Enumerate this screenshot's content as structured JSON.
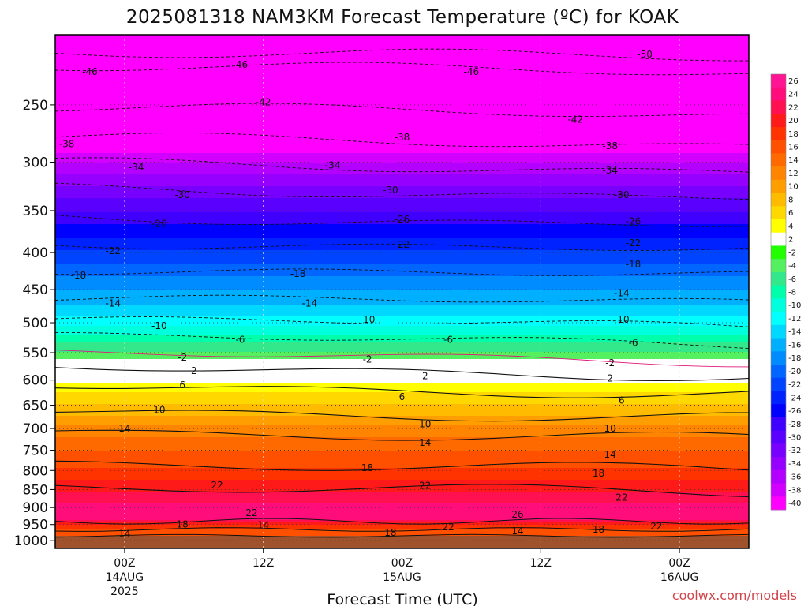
{
  "chart_data": {
    "type": "heatmap",
    "title": "2025081318 NAM3KM Forecast Temperature (ºC) for KOAK",
    "xlabel": "Forecast Time (UTC)",
    "ylabel": "",
    "credit": "coolwx.com/models",
    "x_ticks": [
      {
        "hour": 6,
        "line1": "00Z",
        "line2": "14AUG",
        "line3": "2025"
      },
      {
        "hour": 18,
        "line1": "12Z",
        "line2": "",
        "line3": ""
      },
      {
        "hour": 30,
        "line1": "00Z",
        "line2": "15AUG",
        "line3": ""
      },
      {
        "hour": 42,
        "line1": "12Z",
        "line2": "",
        "line3": ""
      },
      {
        "hour": 54,
        "line1": "00Z",
        "line2": "16AUG",
        "line3": ""
      }
    ],
    "xlim": [
      0,
      60
    ],
    "ylim": [
      1025,
      200
    ],
    "y_scale": "log",
    "y_ticks": [
      250,
      300,
      350,
      400,
      450,
      500,
      550,
      600,
      650,
      700,
      750,
      800,
      850,
      900,
      950,
      1000
    ],
    "colorbar_labels": [
      "26",
      "24",
      "22",
      "20",
      "18",
      "16",
      "14",
      "12",
      "10",
      "8",
      "6",
      "4",
      "2",
      "-2",
      "-4",
      "-6",
      "-8",
      "-10",
      "-12",
      "-14",
      "-16",
      "-18",
      "-20",
      "-22",
      "-24",
      "-26",
      "-28",
      "-30",
      "-32",
      "-34",
      "-36",
      "-38",
      "-40"
    ],
    "colorbar_colors": [
      "#ff1493",
      "#ff0d7a",
      "#ff1050",
      "#ff1a1a",
      "#ff3300",
      "#ff5000",
      "#ff6a00",
      "#ff8400",
      "#ff9e00",
      "#ffbb00",
      "#ffd800",
      "#ffff00",
      "#ffffff",
      "#22ff00",
      "#55f060",
      "#33e88a",
      "#00ffaa",
      "#00ffdd",
      "#00ffff",
      "#00d8ff",
      "#00b0ff",
      "#008cff",
      "#0066ff",
      "#0044ff",
      "#0022ff",
      "#0000ff",
      "#4000ff",
      "#5a00ff",
      "#7800ff",
      "#9600ff",
      "#b400ff",
      "#d200ff",
      "#ff00ff"
    ],
    "ground_color": "#a0522d",
    "contour_labels": [
      {
        "v": "-50",
        "x": 51,
        "p": 213
      },
      {
        "v": "-46",
        "x": 3,
        "p": 225
      },
      {
        "v": "-46",
        "x": 16,
        "p": 220
      },
      {
        "v": "-46",
        "x": 36,
        "p": 225
      },
      {
        "v": "-42",
        "x": 18,
        "p": 248
      },
      {
        "v": "-42",
        "x": 45,
        "p": 262
      },
      {
        "v": "-38",
        "x": 1,
        "p": 283
      },
      {
        "v": "-38",
        "x": 30,
        "p": 277
      },
      {
        "v": "-38",
        "x": 48,
        "p": 285
      },
      {
        "v": "-34",
        "x": 7,
        "p": 305
      },
      {
        "v": "-34",
        "x": 24,
        "p": 303
      },
      {
        "v": "-34",
        "x": 48,
        "p": 308
      },
      {
        "v": "-30",
        "x": 11,
        "p": 333
      },
      {
        "v": "-30",
        "x": 29,
        "p": 328
      },
      {
        "v": "-30",
        "x": 49,
        "p": 333
      },
      {
        "v": "-26",
        "x": 9,
        "p": 365
      },
      {
        "v": "-26",
        "x": 30,
        "p": 360
      },
      {
        "v": "-26",
        "x": 50,
        "p": 362
      },
      {
        "v": "-22",
        "x": 5,
        "p": 398
      },
      {
        "v": "-22",
        "x": 30,
        "p": 390
      },
      {
        "v": "-22",
        "x": 50,
        "p": 388
      },
      {
        "v": "-18",
        "x": 2,
        "p": 430
      },
      {
        "v": "-18",
        "x": 21,
        "p": 428
      },
      {
        "v": "-18",
        "x": 50,
        "p": 415
      },
      {
        "v": "-14",
        "x": 5,
        "p": 470
      },
      {
        "v": "-14",
        "x": 22,
        "p": 470
      },
      {
        "v": "-14",
        "x": 49,
        "p": 455
      },
      {
        "v": "-10",
        "x": 9,
        "p": 505
      },
      {
        "v": "-10",
        "x": 27,
        "p": 495
      },
      {
        "v": "-10",
        "x": 49,
        "p": 495
      },
      {
        "v": "-6",
        "x": 16,
        "p": 528
      },
      {
        "v": "-6",
        "x": 34,
        "p": 528
      },
      {
        "v": "-6",
        "x": 50,
        "p": 533
      },
      {
        "v": "-2",
        "x": 11,
        "p": 558
      },
      {
        "v": "-2",
        "x": 27,
        "p": 562
      },
      {
        "v": "-2",
        "x": 48,
        "p": 568
      },
      {
        "v": "2",
        "x": 12,
        "p": 583
      },
      {
        "v": "2",
        "x": 32,
        "p": 592
      },
      {
        "v": "2",
        "x": 48,
        "p": 597
      },
      {
        "v": "6",
        "x": 11,
        "p": 610
      },
      {
        "v": "6",
        "x": 30,
        "p": 633
      },
      {
        "v": "6",
        "x": 49,
        "p": 640
      },
      {
        "v": "10",
        "x": 9,
        "p": 660
      },
      {
        "v": "10",
        "x": 32,
        "p": 690
      },
      {
        "v": "10",
        "x": 48,
        "p": 700
      },
      {
        "v": "14",
        "x": 6,
        "p": 700
      },
      {
        "v": "14",
        "x": 32,
        "p": 732
      },
      {
        "v": "14",
        "x": 48,
        "p": 760
      },
      {
        "v": "18",
        "x": 27,
        "p": 793
      },
      {
        "v": "18",
        "x": 47,
        "p": 808
      },
      {
        "v": "22",
        "x": 14,
        "p": 838
      },
      {
        "v": "22",
        "x": 32,
        "p": 840
      },
      {
        "v": "22",
        "x": 49,
        "p": 872
      },
      {
        "v": "26",
        "x": 40,
        "p": 920
      },
      {
        "v": "22",
        "x": 17,
        "p": 915
      },
      {
        "v": "18",
        "x": 11,
        "p": 950
      },
      {
        "v": "14",
        "x": 18,
        "p": 952
      },
      {
        "v": "14",
        "x": 6,
        "p": 978
      },
      {
        "v": "18",
        "x": 29,
        "p": 975
      },
      {
        "v": "22",
        "x": 34,
        "p": 958
      },
      {
        "v": "14",
        "x": 40,
        "p": 970
      },
      {
        "v": "18",
        "x": 47,
        "p": 965
      },
      {
        "v": "22",
        "x": 52,
        "p": 955
      }
    ]
  }
}
